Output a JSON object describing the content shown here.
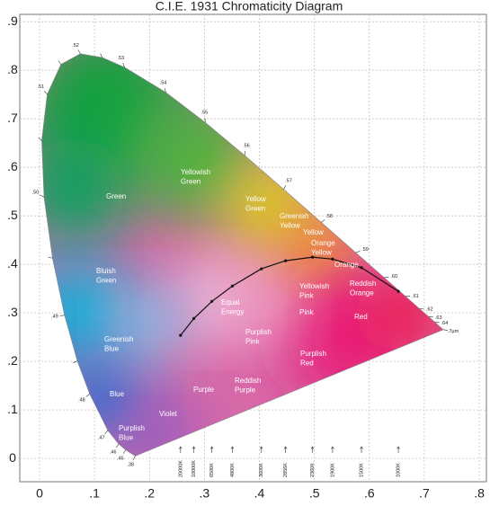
{
  "chart_data": {
    "type": "chromaticity",
    "title": "C.I.E. 1931 Chromaticity Diagram",
    "xlim": [
      -0.036,
      0.813
    ],
    "ylim": [
      -0.048,
      0.915
    ],
    "xticks": [
      0,
      {
        "value": 0.1,
        "label": ".1"
      },
      {
        "value": 0.2,
        "label": ".2"
      },
      {
        "value": 0.3,
        "label": ".3"
      },
      {
        "value": 0.4,
        "label": ".4"
      },
      {
        "value": 0.5,
        "label": ".5"
      },
      {
        "value": 0.6,
        "label": ".6"
      },
      {
        "value": 0.7,
        "label": ".7"
      },
      {
        "value": 0.8,
        "label": ".8"
      }
    ],
    "yticks": [
      0,
      {
        "value": 0.1,
        "label": ".1"
      },
      {
        "value": 0.2,
        "label": ".2"
      },
      {
        "value": 0.3,
        "label": ".3"
      },
      {
        "value": 0.4,
        "label": ".4"
      },
      {
        "value": 0.5,
        "label": ".5"
      },
      {
        "value": 0.6,
        "label": ".6"
      },
      {
        "value": 0.7,
        "label": ".7"
      },
      {
        "value": 0.8,
        "label": ".8"
      },
      {
        "value": 0.9,
        "label": ".9"
      }
    ],
    "grid": true,
    "spectral_locus": {
      "x": [
        0.1741,
        0.1566,
        0.144,
        0.1241,
        0.0913,
        0.0687,
        0.0454,
        0.0235,
        0.0082,
        0.0039,
        0.0139,
        0.0389,
        0.0743,
        0.1142,
        0.1547,
        0.2296,
        0.3016,
        0.3731,
        0.4441,
        0.5125,
        0.5752,
        0.627,
        0.6658,
        0.6915,
        0.7079,
        0.719,
        0.7347
      ],
      "y": [
        0.005,
        0.0177,
        0.0297,
        0.0578,
        0.1327,
        0.2007,
        0.295,
        0.4127,
        0.5384,
        0.6548,
        0.7502,
        0.812,
        0.8338,
        0.8262,
        0.8059,
        0.7543,
        0.6923,
        0.6245,
        0.5547,
        0.4866,
        0.4242,
        0.3725,
        0.334,
        0.3083,
        0.292,
        0.2809,
        0.2653
      ],
      "labels": [
        ".38",
        ".45",
        ".46",
        ".47",
        ".48",
        null,
        ".49",
        null,
        ".50",
        null,
        ".51",
        null,
        ".52",
        null,
        ".53",
        ".54",
        ".55",
        ".56",
        ".57",
        ".58",
        ".59",
        ".60",
        ".61",
        ".62",
        ".63",
        ".64",
        ".7µm"
      ]
    },
    "planckian_locus": {
      "x": [
        0.2565,
        0.2807,
        0.3135,
        0.3508,
        0.4036,
        0.4476,
        0.4966,
        0.5331,
        0.5857,
        0.6528
      ],
      "y": [
        0.2537,
        0.2883,
        0.3237,
        0.3553,
        0.3907,
        0.4074,
        0.4148,
        0.4108,
        0.3931,
        0.3444
      ],
      "labels": [
        "20000K",
        "10000K",
        "6500K",
        "4800K",
        "3600K",
        "2856K",
        "2360K",
        "1900K",
        "1500K",
        "1000K"
      ]
    },
    "region_labels": [
      [
        "Green"
      ],
      [
        "Yellowish",
        "Green"
      ],
      [
        "Yellow",
        "Green"
      ],
      [
        "Greenish",
        "Yellow"
      ],
      [
        "Yellow"
      ],
      [
        "Orange",
        "Yellow"
      ],
      [
        "Orange"
      ],
      [
        "Yellowish",
        "Pink"
      ],
      [
        "Reddish",
        "Orange"
      ],
      [
        "Bluish",
        "Green"
      ],
      [
        "Equal",
        "Energy"
      ],
      [
        "Pink"
      ],
      [
        "Red"
      ],
      [
        "Greenish",
        "Blue"
      ],
      [
        "Purplish",
        "Pink"
      ],
      [
        "Purplish",
        "Red"
      ],
      [
        "Reddish",
        "Purple"
      ],
      [
        "Blue"
      ],
      [
        "Purple"
      ],
      [
        "Violet"
      ],
      [
        "Purplish",
        "Blue"
      ]
    ]
  }
}
